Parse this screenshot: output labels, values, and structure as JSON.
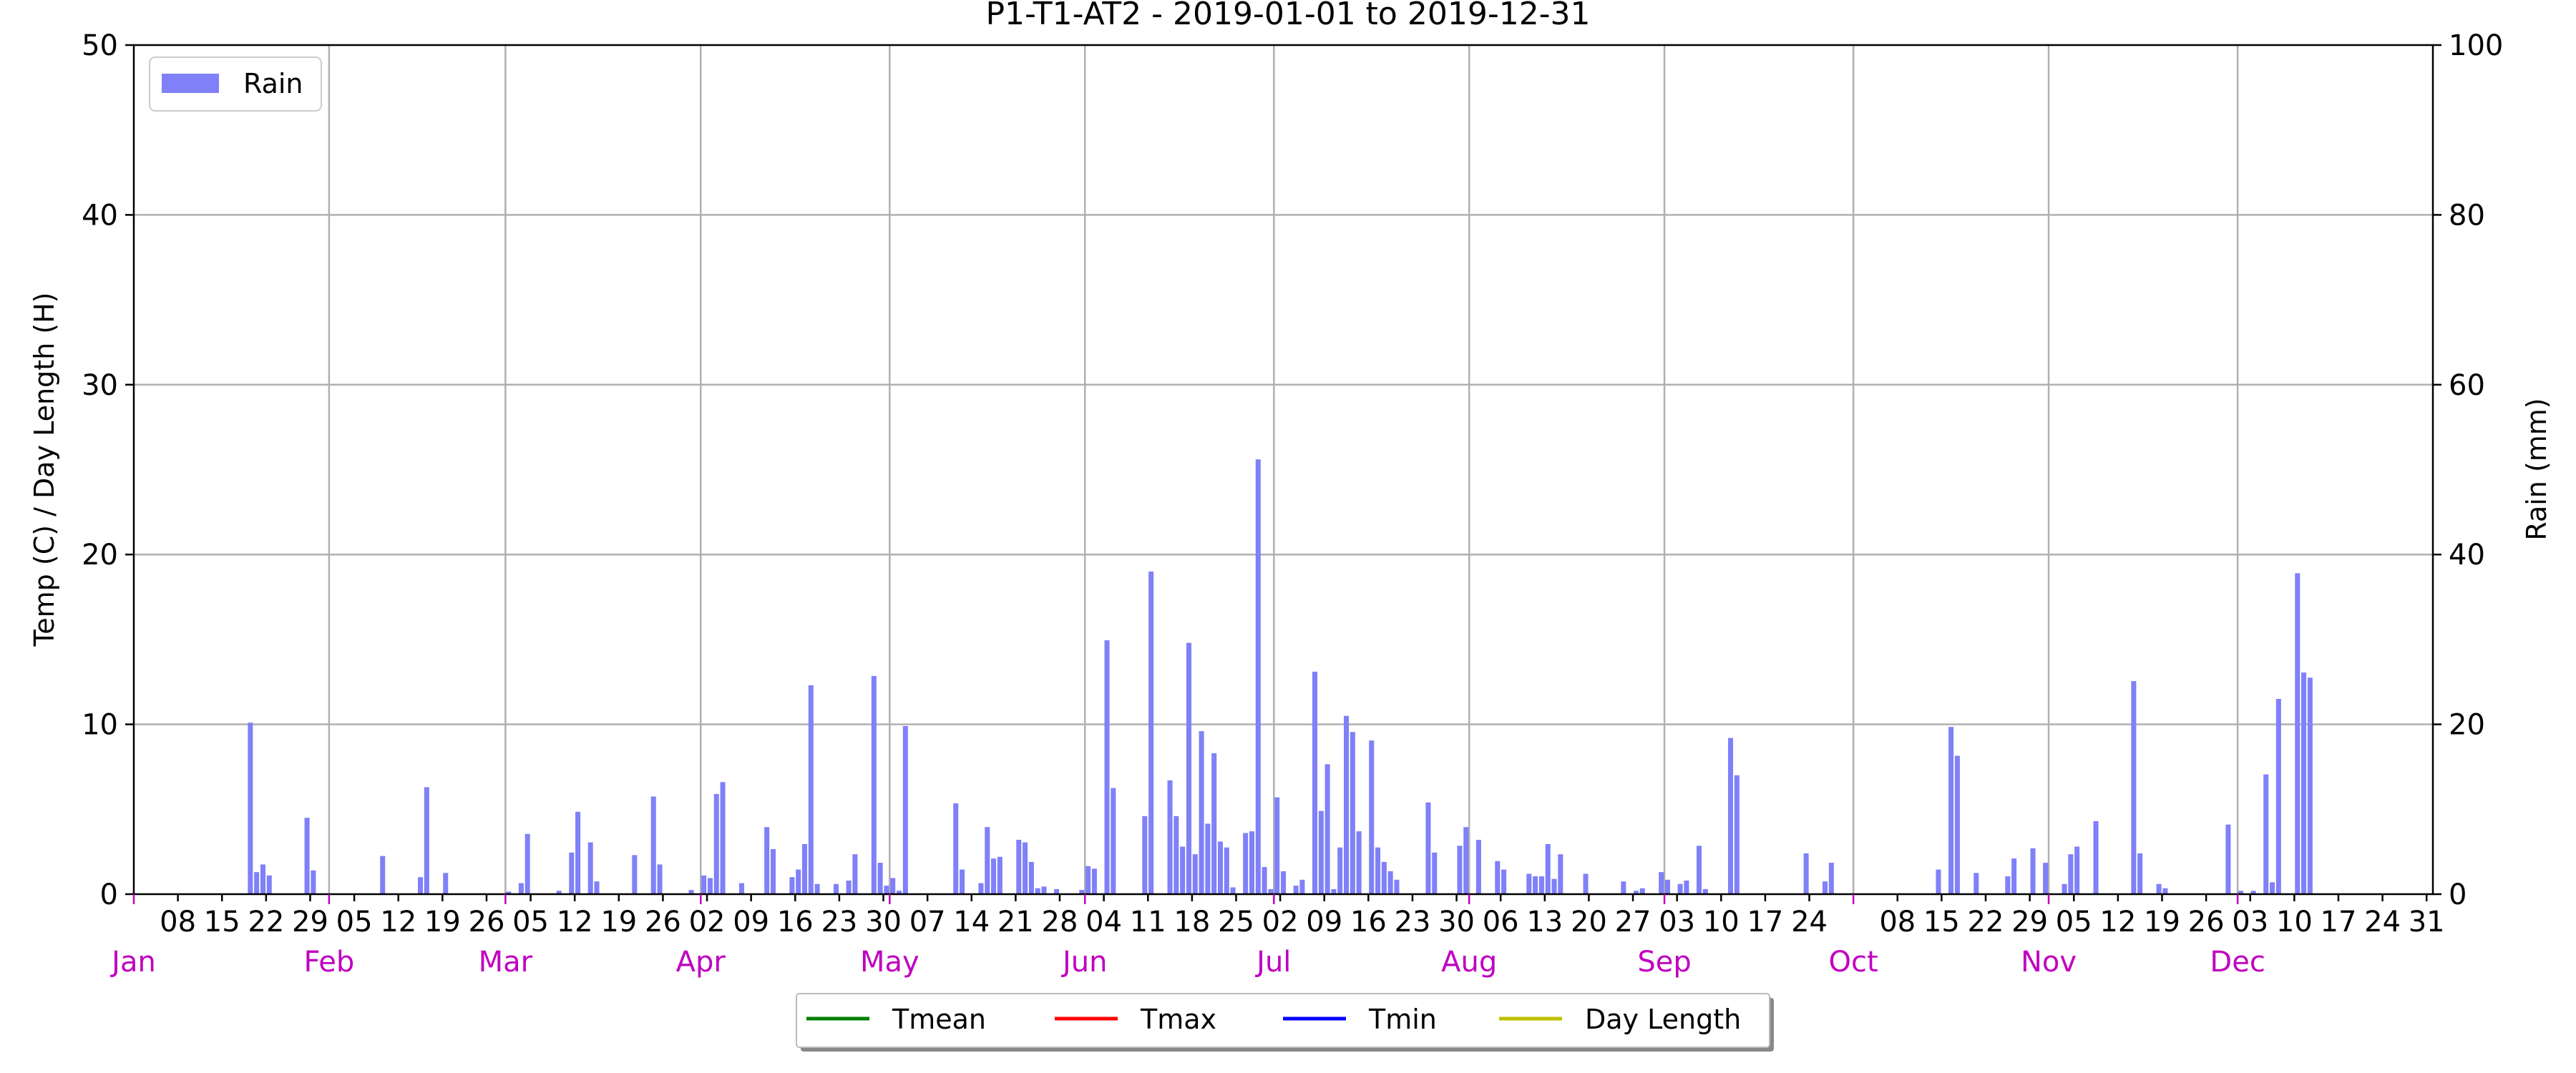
{
  "chart_data": {
    "type": "bar",
    "title": "P1-T1-AT2 - 2019-01-01 to 2019-12-31",
    "ylabel_left": "Temp (C) / Day Length (H)",
    "ylabel_right": "Rain (mm)",
    "ylim_left": [
      0,
      50
    ],
    "ylim_right": [
      0,
      100
    ],
    "yticks_left": [
      "0",
      "10",
      "20",
      "30",
      "40",
      "50"
    ],
    "yticks_right": [
      "0",
      "20",
      "40",
      "60",
      "80",
      "100"
    ],
    "x_range": [
      "2019-01-01",
      "2019-12-31"
    ],
    "grid": true,
    "day_ticks": [
      {
        "date": "2019-01-08",
        "label": "08"
      },
      {
        "date": "2019-01-15",
        "label": "15"
      },
      {
        "date": "2019-01-22",
        "label": "22"
      },
      {
        "date": "2019-01-29",
        "label": "29"
      },
      {
        "date": "2019-02-05",
        "label": "05"
      },
      {
        "date": "2019-02-12",
        "label": "12"
      },
      {
        "date": "2019-02-19",
        "label": "19"
      },
      {
        "date": "2019-02-26",
        "label": "26"
      },
      {
        "date": "2019-03-05",
        "label": "05"
      },
      {
        "date": "2019-03-12",
        "label": "12"
      },
      {
        "date": "2019-03-19",
        "label": "19"
      },
      {
        "date": "2019-03-26",
        "label": "26"
      },
      {
        "date": "2019-04-02",
        "label": "02"
      },
      {
        "date": "2019-04-09",
        "label": "09"
      },
      {
        "date": "2019-04-16",
        "label": "16"
      },
      {
        "date": "2019-04-23",
        "label": "23"
      },
      {
        "date": "2019-04-30",
        "label": "30"
      },
      {
        "date": "2019-05-07",
        "label": "07"
      },
      {
        "date": "2019-05-14",
        "label": "14"
      },
      {
        "date": "2019-05-21",
        "label": "21"
      },
      {
        "date": "2019-05-28",
        "label": "28"
      },
      {
        "date": "2019-06-04",
        "label": "04"
      },
      {
        "date": "2019-06-11",
        "label": "11"
      },
      {
        "date": "2019-06-18",
        "label": "18"
      },
      {
        "date": "2019-06-25",
        "label": "25"
      },
      {
        "date": "2019-07-02",
        "label": "02"
      },
      {
        "date": "2019-07-09",
        "label": "09"
      },
      {
        "date": "2019-07-16",
        "label": "16"
      },
      {
        "date": "2019-07-23",
        "label": "23"
      },
      {
        "date": "2019-07-30",
        "label": "30"
      },
      {
        "date": "2019-08-06",
        "label": "06"
      },
      {
        "date": "2019-08-13",
        "label": "13"
      },
      {
        "date": "2019-08-20",
        "label": "20"
      },
      {
        "date": "2019-08-27",
        "label": "27"
      },
      {
        "date": "2019-09-03",
        "label": "03"
      },
      {
        "date": "2019-09-10",
        "label": "10"
      },
      {
        "date": "2019-09-17",
        "label": "17"
      },
      {
        "date": "2019-09-24",
        "label": "24"
      },
      {
        "date": "2019-10-08",
        "label": "08"
      },
      {
        "date": "2019-10-15",
        "label": "15"
      },
      {
        "date": "2019-10-22",
        "label": "22"
      },
      {
        "date": "2019-10-29",
        "label": "29"
      },
      {
        "date": "2019-11-05",
        "label": "05"
      },
      {
        "date": "2019-11-12",
        "label": "12"
      },
      {
        "date": "2019-11-19",
        "label": "19"
      },
      {
        "date": "2019-11-26",
        "label": "26"
      },
      {
        "date": "2019-12-03",
        "label": "03"
      },
      {
        "date": "2019-12-10",
        "label": "10"
      },
      {
        "date": "2019-12-17",
        "label": "17"
      },
      {
        "date": "2019-12-24",
        "label": "24"
      },
      {
        "date": "2019-12-31",
        "label": "31"
      }
    ],
    "month_ticks": [
      {
        "date": "2019-01-01",
        "label": "Jan"
      },
      {
        "date": "2019-02-01",
        "label": "Feb"
      },
      {
        "date": "2019-03-01",
        "label": "Mar"
      },
      {
        "date": "2019-04-01",
        "label": "Apr"
      },
      {
        "date": "2019-05-01",
        "label": "May"
      },
      {
        "date": "2019-06-01",
        "label": "Jun"
      },
      {
        "date": "2019-07-01",
        "label": "Jul"
      },
      {
        "date": "2019-08-01",
        "label": "Aug"
      },
      {
        "date": "2019-09-01",
        "label": "Sep"
      },
      {
        "date": "2019-10-01",
        "label": "Oct"
      },
      {
        "date": "2019-11-01",
        "label": "Nov"
      },
      {
        "date": "2019-12-01",
        "label": "Dec"
      }
    ],
    "series": [
      {
        "name": "Rain",
        "axis": "right",
        "type": "bar",
        "color": "#8080f8",
        "points": [
          {
            "date": "2019-01-19",
            "value": 20.2
          },
          {
            "date": "2019-01-20",
            "value": 2.6
          },
          {
            "date": "2019-01-21",
            "value": 3.5
          },
          {
            "date": "2019-01-22",
            "value": 2.2
          },
          {
            "date": "2019-01-28",
            "value": 9.0
          },
          {
            "date": "2019-01-29",
            "value": 2.8
          },
          {
            "date": "2019-02-09",
            "value": 4.5
          },
          {
            "date": "2019-02-15",
            "value": 2.0
          },
          {
            "date": "2019-02-16",
            "value": 12.6
          },
          {
            "date": "2019-02-19",
            "value": 2.5
          },
          {
            "date": "2019-03-01",
            "value": 0.3
          },
          {
            "date": "2019-03-03",
            "value": 1.3
          },
          {
            "date": "2019-03-04",
            "value": 7.1
          },
          {
            "date": "2019-03-09",
            "value": 0.4
          },
          {
            "date": "2019-03-11",
            "value": 4.9
          },
          {
            "date": "2019-03-12",
            "value": 9.7
          },
          {
            "date": "2019-03-14",
            "value": 6.1
          },
          {
            "date": "2019-03-15",
            "value": 1.5
          },
          {
            "date": "2019-03-21",
            "value": 4.6
          },
          {
            "date": "2019-03-24",
            "value": 11.5
          },
          {
            "date": "2019-03-25",
            "value": 3.5
          },
          {
            "date": "2019-03-30",
            "value": 0.5
          },
          {
            "date": "2019-04-01",
            "value": 2.2
          },
          {
            "date": "2019-04-02",
            "value": 1.9
          },
          {
            "date": "2019-04-03",
            "value": 11.8
          },
          {
            "date": "2019-04-04",
            "value": 13.2
          },
          {
            "date": "2019-04-07",
            "value": 1.3
          },
          {
            "date": "2019-04-11",
            "value": 7.9
          },
          {
            "date": "2019-04-12",
            "value": 5.3
          },
          {
            "date": "2019-04-15",
            "value": 2.0
          },
          {
            "date": "2019-04-16",
            "value": 2.9
          },
          {
            "date": "2019-04-17",
            "value": 5.9
          },
          {
            "date": "2019-04-18",
            "value": 24.6
          },
          {
            "date": "2019-04-19",
            "value": 1.2
          },
          {
            "date": "2019-04-22",
            "value": 1.2
          },
          {
            "date": "2019-04-24",
            "value": 1.6
          },
          {
            "date": "2019-04-25",
            "value": 4.7
          },
          {
            "date": "2019-04-28",
            "value": 25.7
          },
          {
            "date": "2019-04-29",
            "value": 3.7
          },
          {
            "date": "2019-04-30",
            "value": 1.0
          },
          {
            "date": "2019-05-01",
            "value": 1.9
          },
          {
            "date": "2019-05-02",
            "value": 0.4
          },
          {
            "date": "2019-05-03",
            "value": 19.8
          },
          {
            "date": "2019-05-11",
            "value": 10.7
          },
          {
            "date": "2019-05-12",
            "value": 2.9
          },
          {
            "date": "2019-05-15",
            "value": 1.3
          },
          {
            "date": "2019-05-16",
            "value": 7.9
          },
          {
            "date": "2019-05-17",
            "value": 4.2
          },
          {
            "date": "2019-05-18",
            "value": 4.4
          },
          {
            "date": "2019-05-21",
            "value": 6.4
          },
          {
            "date": "2019-05-22",
            "value": 6.1
          },
          {
            "date": "2019-05-23",
            "value": 3.8
          },
          {
            "date": "2019-05-24",
            "value": 0.7
          },
          {
            "date": "2019-05-25",
            "value": 0.9
          },
          {
            "date": "2019-05-27",
            "value": 0.6
          },
          {
            "date": "2019-05-31",
            "value": 0.5
          },
          {
            "date": "2019-06-01",
            "value": 3.3
          },
          {
            "date": "2019-06-02",
            "value": 3.0
          },
          {
            "date": "2019-06-04",
            "value": 29.9
          },
          {
            "date": "2019-06-05",
            "value": 12.5
          },
          {
            "date": "2019-06-10",
            "value": 9.2
          },
          {
            "date": "2019-06-11",
            "value": 38.0
          },
          {
            "date": "2019-06-14",
            "value": 13.4
          },
          {
            "date": "2019-06-15",
            "value": 9.2
          },
          {
            "date": "2019-06-16",
            "value": 5.6
          },
          {
            "date": "2019-06-17",
            "value": 29.6
          },
          {
            "date": "2019-06-18",
            "value": 4.7
          },
          {
            "date": "2019-06-19",
            "value": 19.2
          },
          {
            "date": "2019-06-20",
            "value": 8.3
          },
          {
            "date": "2019-06-21",
            "value": 16.6
          },
          {
            "date": "2019-06-22",
            "value": 6.2
          },
          {
            "date": "2019-06-23",
            "value": 5.5
          },
          {
            "date": "2019-06-24",
            "value": 0.8
          },
          {
            "date": "2019-06-26",
            "value": 7.2
          },
          {
            "date": "2019-06-27",
            "value": 7.4
          },
          {
            "date": "2019-06-28",
            "value": 51.2
          },
          {
            "date": "2019-06-29",
            "value": 3.2
          },
          {
            "date": "2019-06-30",
            "value": 0.6
          },
          {
            "date": "2019-07-01",
            "value": 11.4
          },
          {
            "date": "2019-07-02",
            "value": 2.7
          },
          {
            "date": "2019-07-04",
            "value": 1.0
          },
          {
            "date": "2019-07-05",
            "value": 1.7
          },
          {
            "date": "2019-07-07",
            "value": 26.2
          },
          {
            "date": "2019-07-08",
            "value": 9.8
          },
          {
            "date": "2019-07-09",
            "value": 15.3
          },
          {
            "date": "2019-07-10",
            "value": 0.6
          },
          {
            "date": "2019-07-11",
            "value": 5.5
          },
          {
            "date": "2019-07-12",
            "value": 21.0
          },
          {
            "date": "2019-07-13",
            "value": 19.1
          },
          {
            "date": "2019-07-14",
            "value": 7.4
          },
          {
            "date": "2019-07-16",
            "value": 18.1
          },
          {
            "date": "2019-07-17",
            "value": 5.5
          },
          {
            "date": "2019-07-18",
            "value": 3.8
          },
          {
            "date": "2019-07-19",
            "value": 2.7
          },
          {
            "date": "2019-07-20",
            "value": 1.7
          },
          {
            "date": "2019-07-25",
            "value": 10.8
          },
          {
            "date": "2019-07-26",
            "value": 4.9
          },
          {
            "date": "2019-07-30",
            "value": 5.7
          },
          {
            "date": "2019-07-31",
            "value": 7.9
          },
          {
            "date": "2019-08-02",
            "value": 6.4
          },
          {
            "date": "2019-08-05",
            "value": 3.9
          },
          {
            "date": "2019-08-06",
            "value": 2.9
          },
          {
            "date": "2019-08-10",
            "value": 2.4
          },
          {
            "date": "2019-08-11",
            "value": 2.1
          },
          {
            "date": "2019-08-12",
            "value": 2.1
          },
          {
            "date": "2019-08-13",
            "value": 5.9
          },
          {
            "date": "2019-08-14",
            "value": 1.8
          },
          {
            "date": "2019-08-15",
            "value": 4.7
          },
          {
            "date": "2019-08-19",
            "value": 2.4
          },
          {
            "date": "2019-08-25",
            "value": 1.5
          },
          {
            "date": "2019-08-27",
            "value": 0.4
          },
          {
            "date": "2019-08-28",
            "value": 0.7
          },
          {
            "date": "2019-08-31",
            "value": 2.6
          },
          {
            "date": "2019-09-01",
            "value": 1.7
          },
          {
            "date": "2019-09-03",
            "value": 1.2
          },
          {
            "date": "2019-09-04",
            "value": 1.6
          },
          {
            "date": "2019-09-06",
            "value": 5.7
          },
          {
            "date": "2019-09-07",
            "value": 0.6
          },
          {
            "date": "2019-09-11",
            "value": 18.4
          },
          {
            "date": "2019-09-12",
            "value": 14.0
          },
          {
            "date": "2019-09-23",
            "value": 4.8
          },
          {
            "date": "2019-09-26",
            "value": 1.5
          },
          {
            "date": "2019-09-27",
            "value": 3.7
          },
          {
            "date": "2019-10-14",
            "value": 2.9
          },
          {
            "date": "2019-10-16",
            "value": 19.7
          },
          {
            "date": "2019-10-17",
            "value": 16.3
          },
          {
            "date": "2019-10-20",
            "value": 2.5
          },
          {
            "date": "2019-10-25",
            "value": 2.1
          },
          {
            "date": "2019-10-26",
            "value": 4.2
          },
          {
            "date": "2019-10-29",
            "value": 5.4
          },
          {
            "date": "2019-10-31",
            "value": 3.7
          },
          {
            "date": "2019-11-03",
            "value": 1.2
          },
          {
            "date": "2019-11-04",
            "value": 4.7
          },
          {
            "date": "2019-11-05",
            "value": 5.6
          },
          {
            "date": "2019-11-08",
            "value": 8.6
          },
          {
            "date": "2019-11-14",
            "value": 25.1
          },
          {
            "date": "2019-11-15",
            "value": 4.8
          },
          {
            "date": "2019-11-18",
            "value": 1.2
          },
          {
            "date": "2019-11-19",
            "value": 0.7
          },
          {
            "date": "2019-11-29",
            "value": 8.2
          },
          {
            "date": "2019-12-01",
            "value": 0.4
          },
          {
            "date": "2019-12-03",
            "value": 0.4
          },
          {
            "date": "2019-12-05",
            "value": 14.1
          },
          {
            "date": "2019-12-06",
            "value": 1.4
          },
          {
            "date": "2019-12-07",
            "value": 23.0
          },
          {
            "date": "2019-12-10",
            "value": 37.8
          },
          {
            "date": "2019-12-11",
            "value": 26.1
          },
          {
            "date": "2019-12-12",
            "value": 25.5
          }
        ]
      },
      {
        "name": "Tmean",
        "axis": "left",
        "type": "line",
        "color": "#008000",
        "points": []
      },
      {
        "name": "Tmax",
        "axis": "left",
        "type": "line",
        "color": "#ff0000",
        "points": []
      },
      {
        "name": "Tmin",
        "axis": "left",
        "type": "line",
        "color": "#0000ff",
        "points": []
      },
      {
        "name": "Day Length",
        "axis": "left",
        "type": "line",
        "color": "#bfbf00",
        "points": []
      }
    ],
    "legend_top": {
      "placement": "top-left",
      "entries": [
        "Rain"
      ]
    },
    "legend_bottom": {
      "placement": "bottom-center",
      "entries": [
        "Tmean",
        "Tmax",
        "Tmin",
        "Day Length"
      ]
    }
  }
}
